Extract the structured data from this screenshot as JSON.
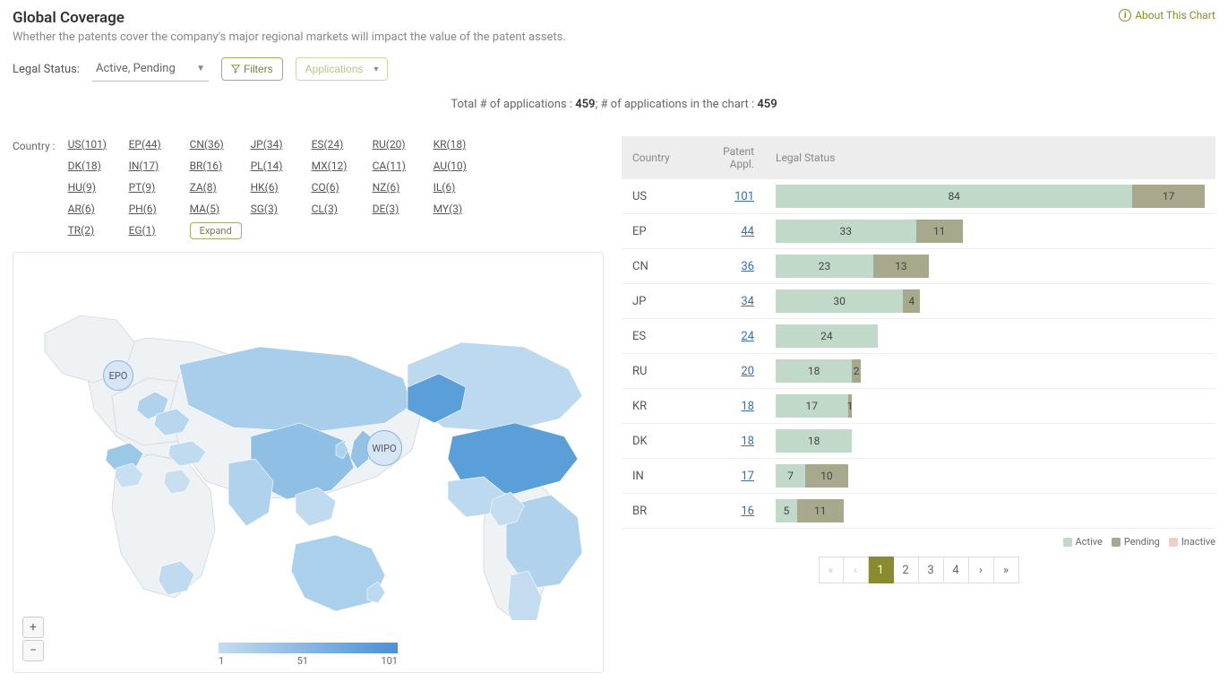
{
  "title": "Global Coverage",
  "subtitle": "Whether the patents cover the company's major regional markets will impact the value of the patent assets.",
  "about_label": "About This Chart",
  "legal_status_label": "Legal Status:",
  "legal_status_value": "Active, Pending",
  "filters_btn": "Filters",
  "applications_btn": "Applications",
  "totals_prefix": "Total # of applications : ",
  "totals_total": "459",
  "totals_mid": "; # of applications in the chart : ",
  "totals_chart": "459",
  "country_label": "Country :",
  "expand_label": "Expand",
  "countries": [
    {
      "c": "US",
      "n": 101
    },
    {
      "c": "EP",
      "n": 44
    },
    {
      "c": "CN",
      "n": 36
    },
    {
      "c": "JP",
      "n": 34
    },
    {
      "c": "ES",
      "n": 24
    },
    {
      "c": "RU",
      "n": 20
    },
    {
      "c": "KR",
      "n": 18
    },
    {
      "c": "DK",
      "n": 18
    },
    {
      "c": "IN",
      "n": 17
    },
    {
      "c": "BR",
      "n": 16
    },
    {
      "c": "PL",
      "n": 14
    },
    {
      "c": "MX",
      "n": 12
    },
    {
      "c": "CA",
      "n": 11
    },
    {
      "c": "AU",
      "n": 10
    },
    {
      "c": "HU",
      "n": 9
    },
    {
      "c": "PT",
      "n": 9
    },
    {
      "c": "ZA",
      "n": 8
    },
    {
      "c": "HK",
      "n": 6
    },
    {
      "c": "CO",
      "n": 6
    },
    {
      "c": "NZ",
      "n": 6
    },
    {
      "c": "IL",
      "n": 6
    },
    {
      "c": "AR",
      "n": 6
    },
    {
      "c": "PH",
      "n": 6
    },
    {
      "c": "MA",
      "n": 5
    },
    {
      "c": "SG",
      "n": 3
    },
    {
      "c": "CL",
      "n": 3
    },
    {
      "c": "DE",
      "n": 3
    },
    {
      "c": "MY",
      "n": 3
    },
    {
      "c": "TR",
      "n": 2
    },
    {
      "c": "EG",
      "n": 1
    }
  ],
  "map_legend": {
    "min": "1",
    "mid": "51",
    "max": "101"
  },
  "map_labels": {
    "epo": "EPO",
    "wipo": "WIPO"
  },
  "zoom": {
    "in": "+",
    "out": "−"
  },
  "table": {
    "headers": {
      "country": "Country",
      "patent": "Patent Appl.",
      "legal": "Legal Status"
    },
    "max": 101,
    "rows": [
      {
        "c": "US",
        "n": 101,
        "active": 84,
        "pending": 17
      },
      {
        "c": "EP",
        "n": 44,
        "active": 33,
        "pending": 11
      },
      {
        "c": "CN",
        "n": 36,
        "active": 23,
        "pending": 13
      },
      {
        "c": "JP",
        "n": 34,
        "active": 30,
        "pending": 4
      },
      {
        "c": "ES",
        "n": 24,
        "active": 24,
        "pending": 0
      },
      {
        "c": "RU",
        "n": 20,
        "active": 18,
        "pending": 2
      },
      {
        "c": "KR",
        "n": 18,
        "active": 17,
        "pending": 1
      },
      {
        "c": "DK",
        "n": 18,
        "active": 18,
        "pending": 0
      },
      {
        "c": "IN",
        "n": 17,
        "active": 7,
        "pending": 10
      },
      {
        "c": "BR",
        "n": 16,
        "active": 5,
        "pending": 11
      }
    ]
  },
  "legend": {
    "active": "Active",
    "pending": "Pending",
    "inactive": "Inactive"
  },
  "colors": {
    "active": "#c1d9c8",
    "pending": "#a8a88c",
    "inactive": "#f0cfc4"
  },
  "pages": [
    "1",
    "2",
    "3",
    "4"
  ],
  "current_page": "1",
  "nav": {
    "first": "«",
    "prev": "‹",
    "next": "›",
    "last": "»"
  }
}
